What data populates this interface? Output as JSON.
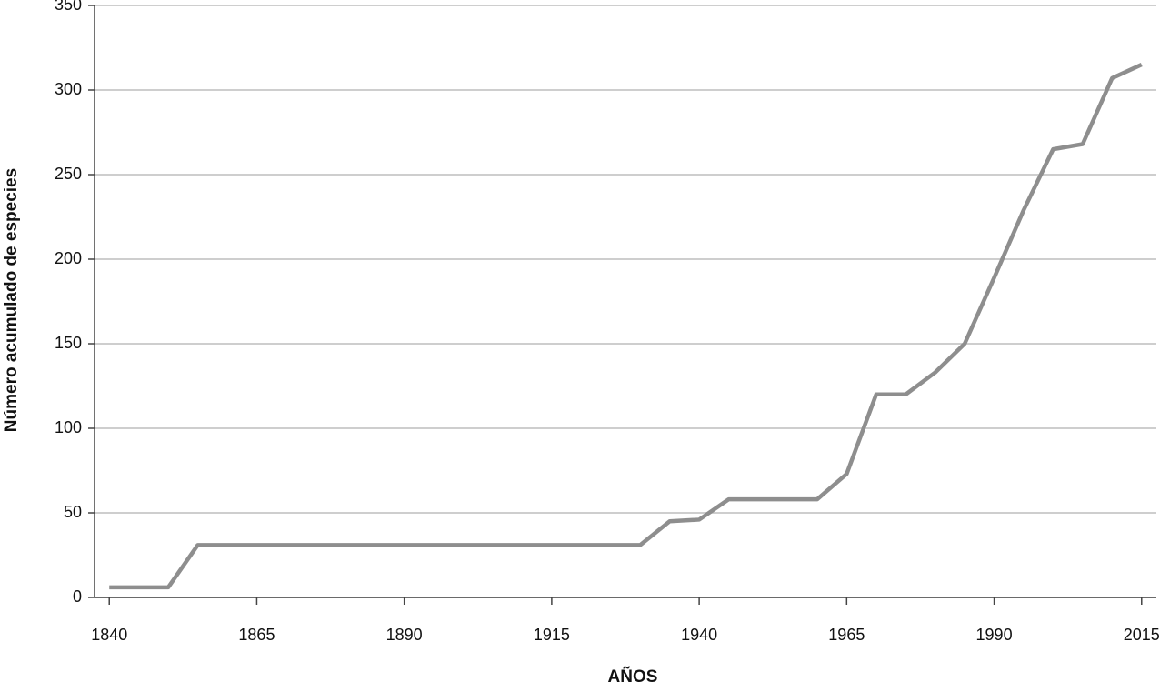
{
  "chart_data": {
    "type": "line",
    "x_label": "AÑOS",
    "y_label": "Número acumulado de especies",
    "x": [
      1840,
      1850,
      1855,
      1930,
      1935,
      1940,
      1945,
      1960,
      1965,
      1970,
      1975,
      1980,
      1985,
      1990,
      1995,
      2000,
      2005,
      2010,
      2015
    ],
    "series": [
      {
        "color": "#8e8e8e",
        "values": [
          6,
          6,
          31,
          31,
          45,
          46,
          58,
          58,
          73,
          120,
          120,
          133,
          150,
          189,
          229,
          265,
          268,
          307,
          315
        ]
      }
    ],
    "xlim": [
      1837.5,
      2017.5
    ],
    "xticks": [
      1840,
      1865,
      1890,
      1915,
      1940,
      1965,
      1990,
      2015
    ],
    "ylim": [
      0,
      350
    ],
    "yticks": [
      0,
      50,
      100,
      150,
      200,
      250,
      300,
      350
    ],
    "grid": true
  }
}
